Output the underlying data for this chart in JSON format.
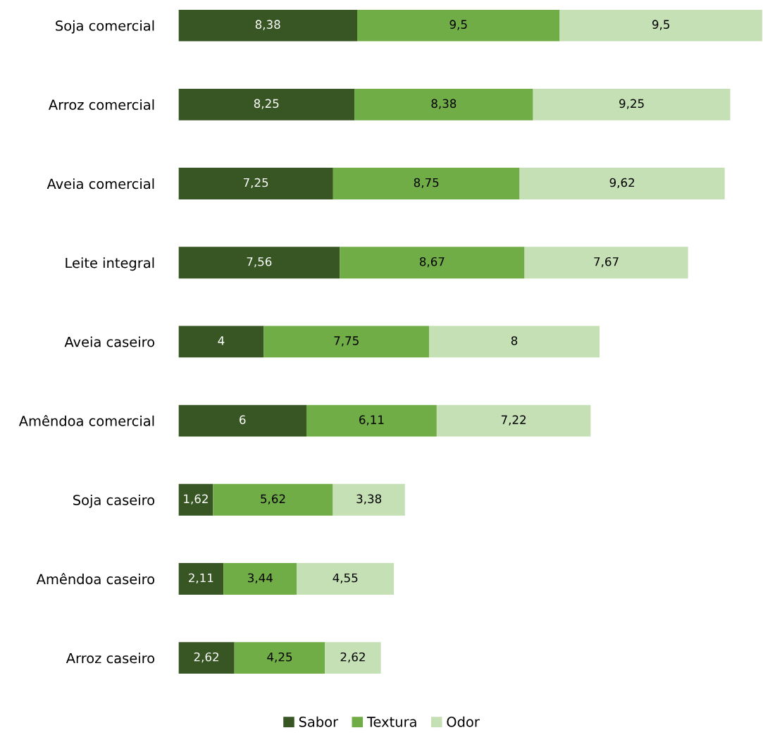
{
  "chart_data": {
    "type": "bar",
    "orientation": "horizontal",
    "stacked": true,
    "categories": [
      "Soja comercial",
      "Arroz comercial",
      "Aveia comercial",
      "Leite integral",
      "Aveia caseiro",
      "Amêndoa comercial",
      "Soja caseiro",
      "Amêndoa caseiro",
      "Arroz caseiro"
    ],
    "series": [
      {
        "name": "Sabor",
        "color": "#375623",
        "values": [
          8.38,
          8.25,
          7.25,
          7.56,
          4,
          6,
          1.62,
          2.11,
          2.62
        ],
        "value_labels": [
          "8,38",
          "8,25",
          "7,25",
          "7,56",
          "4",
          "6",
          "1,62",
          "2,11",
          "2,62"
        ]
      },
      {
        "name": "Textura",
        "color": "#70ad47",
        "values": [
          9.5,
          8.38,
          8.75,
          8.67,
          7.75,
          6.11,
          5.62,
          3.44,
          4.25
        ],
        "value_labels": [
          "9,5",
          "8,38",
          "8,75",
          "8,67",
          "7,75",
          "6,11",
          "5,62",
          "3,44",
          "4,25"
        ]
      },
      {
        "name": "Odor",
        "color": "#c5e0b4",
        "values": [
          9.5,
          9.25,
          9.62,
          7.67,
          8,
          7.22,
          3.38,
          4.55,
          2.62
        ],
        "value_labels": [
          "9,5",
          "9,25",
          "9,62",
          "7,67",
          "8",
          "7,22",
          "3,38",
          "4,55",
          "2,62"
        ]
      }
    ],
    "xlim": [
      0,
      27.38
    ],
    "tick_labels": "y",
    "grid": false,
    "legend": "bottom"
  }
}
